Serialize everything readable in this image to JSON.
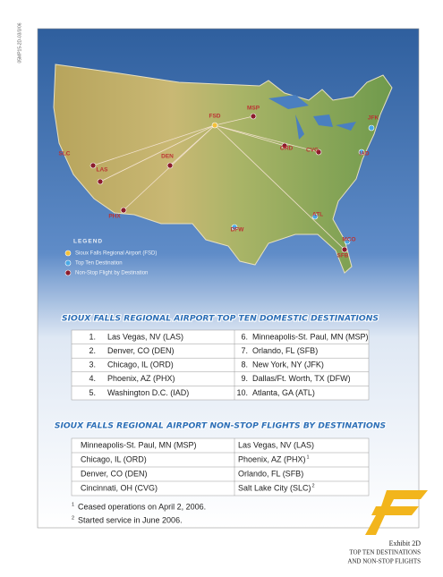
{
  "side_code": "05MP15-2D-03/3/06",
  "map": {
    "airports": [
      "FSD",
      "MSP",
      "SLC",
      "DEN",
      "LAS",
      "PHX",
      "ORD",
      "CVG",
      "JFK",
      "IAD",
      "ATL",
      "DFW",
      "MCO",
      "SFB"
    ],
    "legend": {
      "title": "LEGEND",
      "items": [
        "Sioux Falls Regional Airport (FSD)",
        "Top Ten Destination",
        "Non-Stop Flight by Destination"
      ]
    }
  },
  "top_ten": {
    "title": "SIOUX FALLS REGIONAL AIRPORT TOP TEN DOMESTIC DESTINATIONS",
    "items": [
      {
        "rank": "1.",
        "name": "Las Vegas, NV (LAS)"
      },
      {
        "rank": "2.",
        "name": "Denver, CO (DEN)"
      },
      {
        "rank": "3.",
        "name": "Chicago, IL (ORD)"
      },
      {
        "rank": "4.",
        "name": "Phoenix, AZ (PHX)"
      },
      {
        "rank": "5.",
        "name": "Washington D.C. (IAD)"
      },
      {
        "rank": "6.",
        "name": "Minneapolis-St. Paul, MN (MSP)"
      },
      {
        "rank": "7.",
        "name": "Orlando, FL (SFB)"
      },
      {
        "rank": "8.",
        "name": "New York, NY (JFK)"
      },
      {
        "rank": "9.",
        "name": "Dallas/Ft. Worth, TX (DFW)"
      },
      {
        "rank": "10.",
        "name": "Atlanta, GA (ATL)"
      }
    ]
  },
  "nonstop": {
    "title": "SIOUX FALLS REGIONAL AIRPORT NON-STOP FLIGHTS BY DESTINATIONS",
    "rows": [
      [
        {
          "text": "Minneapolis-St. Paul, MN (MSP)"
        },
        {
          "text": "Las Vegas, NV (LAS)"
        }
      ],
      [
        {
          "text": "Chicago, IL (ORD)"
        },
        {
          "text": "Phoenix, AZ (PHX)",
          "note": "1"
        }
      ],
      [
        {
          "text": "Denver, CO (DEN)"
        },
        {
          "text": "Orlando, FL (SFB)"
        }
      ],
      [
        {
          "text": "Cincinnati, OH (CVG)"
        },
        {
          "text": "Salt Lake City (SLC)",
          "note": "2"
        }
      ]
    ]
  },
  "footnotes": [
    {
      "mark": "1",
      "text": "Ceased operations on April 2, 2006."
    },
    {
      "mark": "2",
      "text": "Started service in June 2006."
    }
  ],
  "exhibit": [
    "Exhibit 2D",
    "TOP TEN DESTINATIONS",
    "AND NON-STOP FLIGHTS"
  ]
}
